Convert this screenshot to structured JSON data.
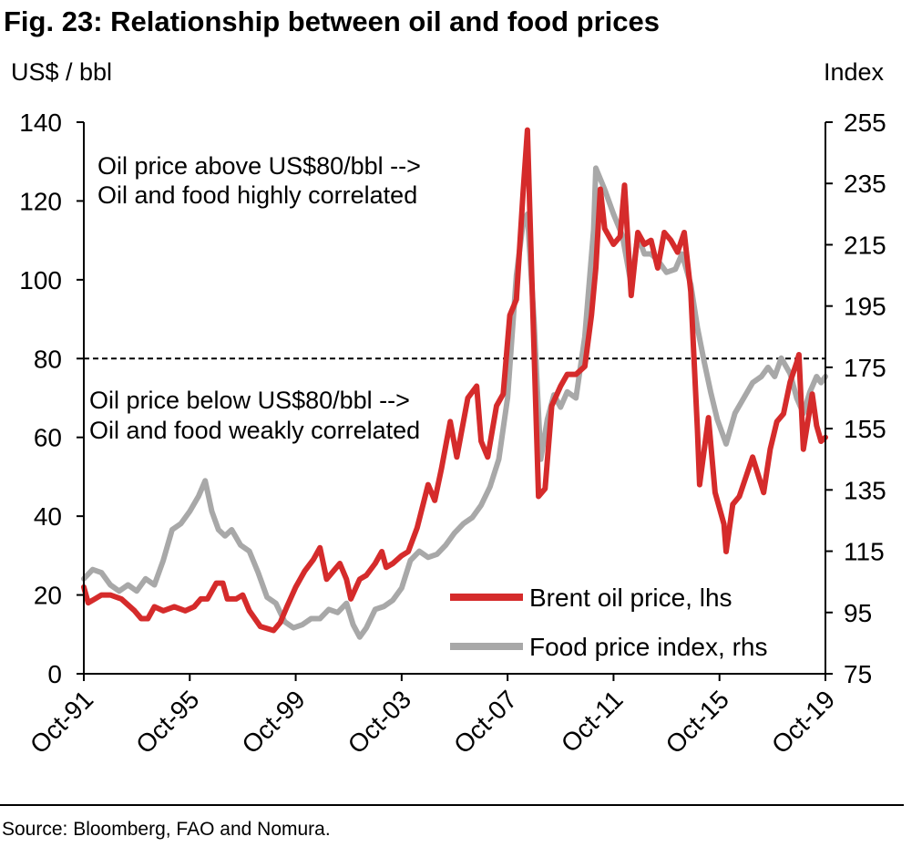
{
  "title": "Fig. 23: Relationship between oil and food prices",
  "unit_left": "US$ / bbl",
  "unit_right": "Index",
  "source": "Source: Bloomberg, FAO and Nomura.",
  "colors": {
    "oil": "#d52b2b",
    "food": "#a8a8a8",
    "axis": "#000000"
  },
  "chart_data": {
    "type": "line",
    "x_tick_labels": [
      "Oct-91",
      "Oct-95",
      "Oct-99",
      "Oct-03",
      "Oct-07",
      "Oct-11",
      "Oct-15",
      "Oct-19"
    ],
    "x_range": [
      "1991-10",
      "2019-10"
    ],
    "y_left": {
      "label": "US$ / bbl",
      "lim": [
        0,
        140
      ],
      "ticks": [
        0,
        20,
        40,
        60,
        80,
        100,
        120,
        140
      ]
    },
    "y_right": {
      "label": "Index",
      "lim": [
        75,
        255
      ],
      "ticks": [
        75,
        95,
        115,
        135,
        155,
        175,
        195,
        215,
        235,
        255
      ]
    },
    "reference_line": {
      "axis": "left",
      "value": 80,
      "style": "dashed"
    },
    "annotations": {
      "above_line1": "Oil price above US$80/bbl  -->",
      "above_line2": "Oil and food highly correlated",
      "below_line1": "Oil price below US$80/bbl -->",
      "below_line2": "Oil and food weakly correlated"
    },
    "legend": {
      "placement": "bottom-right"
    },
    "series": [
      {
        "name": "Brent oil price, lhs",
        "axis": "left",
        "points": [
          [
            "1991-10",
            22
          ],
          [
            "1991-12",
            18
          ],
          [
            "1992-03",
            19
          ],
          [
            "1992-06",
            20
          ],
          [
            "1992-10",
            20
          ],
          [
            "1993-03",
            19
          ],
          [
            "1993-09",
            16
          ],
          [
            "1993-12",
            14
          ],
          [
            "1994-03",
            14
          ],
          [
            "1994-06",
            17
          ],
          [
            "1994-10",
            16
          ],
          [
            "1995-03",
            17
          ],
          [
            "1995-08",
            16
          ],
          [
            "1995-12",
            17
          ],
          [
            "1996-03",
            19
          ],
          [
            "1996-06",
            19
          ],
          [
            "1996-10",
            23
          ],
          [
            "1997-01",
            23
          ],
          [
            "1997-03",
            19
          ],
          [
            "1997-07",
            19
          ],
          [
            "1997-10",
            20
          ],
          [
            "1998-01",
            16
          ],
          [
            "1998-06",
            12
          ],
          [
            "1998-12",
            11
          ],
          [
            "1999-03",
            13
          ],
          [
            "1999-06",
            17
          ],
          [
            "1999-10",
            22
          ],
          [
            "2000-02",
            26
          ],
          [
            "2000-06",
            29
          ],
          [
            "2000-09",
            32
          ],
          [
            "2000-12",
            24
          ],
          [
            "2001-03",
            26
          ],
          [
            "2001-06",
            28
          ],
          [
            "2001-09",
            24
          ],
          [
            "2001-11",
            19
          ],
          [
            "2002-03",
            24
          ],
          [
            "2002-06",
            25
          ],
          [
            "2002-10",
            28
          ],
          [
            "2003-01",
            31
          ],
          [
            "2003-03",
            27
          ],
          [
            "2003-06",
            28
          ],
          [
            "2003-10",
            30
          ],
          [
            "2004-01",
            31
          ],
          [
            "2004-05",
            37
          ],
          [
            "2004-10",
            48
          ],
          [
            "2005-01",
            44
          ],
          [
            "2005-04",
            52
          ],
          [
            "2005-08",
            64
          ],
          [
            "2005-11",
            55
          ],
          [
            "2006-04",
            70
          ],
          [
            "2006-08",
            73
          ],
          [
            "2006-10",
            59
          ],
          [
            "2007-01",
            55
          ],
          [
            "2007-05",
            68
          ],
          [
            "2007-08",
            71
          ],
          [
            "2007-11",
            91
          ],
          [
            "2008-02",
            95
          ],
          [
            "2008-05",
            122
          ],
          [
            "2008-07",
            138
          ],
          [
            "2008-09",
            100
          ],
          [
            "2008-12",
            45
          ],
          [
            "2009-03",
            47
          ],
          [
            "2009-06",
            68
          ],
          [
            "2009-10",
            73
          ],
          [
            "2010-01",
            76
          ],
          [
            "2010-05",
            76
          ],
          [
            "2010-09",
            78
          ],
          [
            "2010-12",
            91
          ],
          [
            "2011-02",
            103
          ],
          [
            "2011-04",
            123
          ],
          [
            "2011-06",
            113
          ],
          [
            "2011-10",
            109
          ],
          [
            "2012-01",
            111
          ],
          [
            "2012-03",
            124
          ],
          [
            "2012-06",
            96
          ],
          [
            "2012-09",
            112
          ],
          [
            "2012-12",
            109
          ],
          [
            "2013-03",
            110
          ],
          [
            "2013-06",
            103
          ],
          [
            "2013-09",
            112
          ],
          [
            "2013-12",
            110
          ],
          [
            "2014-03",
            107
          ],
          [
            "2014-06",
            112
          ],
          [
            "2014-09",
            97
          ],
          [
            "2014-12",
            62
          ],
          [
            "2015-01",
            48
          ],
          [
            "2015-05",
            65
          ],
          [
            "2015-08",
            46
          ],
          [
            "2015-12",
            38
          ],
          [
            "2016-01",
            31
          ],
          [
            "2016-04",
            43
          ],
          [
            "2016-07",
            45
          ],
          [
            "2016-10",
            50
          ],
          [
            "2017-01",
            55
          ],
          [
            "2017-06",
            46
          ],
          [
            "2017-09",
            57
          ],
          [
            "2017-12",
            64
          ],
          [
            "2018-03",
            66
          ],
          [
            "2018-06",
            74
          ],
          [
            "2018-09",
            79
          ],
          [
            "2018-10",
            81
          ],
          [
            "2018-12",
            57
          ],
          [
            "2019-04",
            71
          ],
          [
            "2019-06",
            63
          ],
          [
            "2019-08",
            59
          ],
          [
            "2019-10",
            60
          ]
        ]
      },
      {
        "name": "Food price index, rhs",
        "axis": "right",
        "points": [
          [
            "1991-10",
            106
          ],
          [
            "1992-02",
            109
          ],
          [
            "1992-06",
            108
          ],
          [
            "1992-10",
            104
          ],
          [
            "1993-02",
            102
          ],
          [
            "1993-06",
            104
          ],
          [
            "1993-10",
            102
          ],
          [
            "1994-02",
            106
          ],
          [
            "1994-06",
            104
          ],
          [
            "1994-10",
            112
          ],
          [
            "1995-02",
            122
          ],
          [
            "1995-06",
            124
          ],
          [
            "1995-10",
            128
          ],
          [
            "1996-02",
            133
          ],
          [
            "1996-05",
            138
          ],
          [
            "1996-08",
            128
          ],
          [
            "1996-11",
            122
          ],
          [
            "1997-02",
            120
          ],
          [
            "1997-05",
            122
          ],
          [
            "1997-09",
            117
          ],
          [
            "1998-01",
            115
          ],
          [
            "1998-05",
            108
          ],
          [
            "1998-09",
            100
          ],
          [
            "1999-01",
            98
          ],
          [
            "1999-05",
            92
          ],
          [
            "1999-09",
            90
          ],
          [
            "2000-01",
            91
          ],
          [
            "2000-05",
            93
          ],
          [
            "2000-09",
            93
          ],
          [
            "2001-01",
            96
          ],
          [
            "2001-05",
            95
          ],
          [
            "2001-09",
            98
          ],
          [
            "2001-12",
            91
          ],
          [
            "2002-03",
            87
          ],
          [
            "2002-06",
            90
          ],
          [
            "2002-10",
            96
          ],
          [
            "2003-02",
            97
          ],
          [
            "2003-06",
            99
          ],
          [
            "2003-10",
            103
          ],
          [
            "2004-02",
            112
          ],
          [
            "2004-06",
            115
          ],
          [
            "2004-10",
            113
          ],
          [
            "2005-02",
            114
          ],
          [
            "2005-06",
            117
          ],
          [
            "2005-10",
            121
          ],
          [
            "2006-02",
            124
          ],
          [
            "2006-06",
            126
          ],
          [
            "2006-10",
            130
          ],
          [
            "2007-02",
            136
          ],
          [
            "2007-06",
            145
          ],
          [
            "2007-10",
            165
          ],
          [
            "2008-02",
            205
          ],
          [
            "2008-05",
            222
          ],
          [
            "2008-07",
            225
          ],
          [
            "2008-10",
            190
          ],
          [
            "2009-01",
            145
          ],
          [
            "2009-04",
            158
          ],
          [
            "2009-07",
            166
          ],
          [
            "2009-10",
            162
          ],
          [
            "2010-01",
            167
          ],
          [
            "2010-05",
            165
          ],
          [
            "2010-09",
            185
          ],
          [
            "2011-01",
            220
          ],
          [
            "2011-02",
            240
          ],
          [
            "2011-06",
            233
          ],
          [
            "2011-10",
            225
          ],
          [
            "2012-02",
            218
          ],
          [
            "2012-06",
            202
          ],
          [
            "2012-09",
            218
          ],
          [
            "2012-12",
            212
          ],
          [
            "2013-03",
            212
          ],
          [
            "2013-06",
            210
          ],
          [
            "2013-10",
            206
          ],
          [
            "2014-02",
            207
          ],
          [
            "2014-05",
            212
          ],
          [
            "2014-09",
            202
          ],
          [
            "2014-12",
            188
          ],
          [
            "2015-03",
            177
          ],
          [
            "2015-06",
            167
          ],
          [
            "2015-09",
            158
          ],
          [
            "2016-01",
            150
          ],
          [
            "2016-05",
            160
          ],
          [
            "2016-09",
            165
          ],
          [
            "2017-01",
            170
          ],
          [
            "2017-05",
            172
          ],
          [
            "2017-08",
            175
          ],
          [
            "2017-11",
            172
          ],
          [
            "2018-02",
            178
          ],
          [
            "2018-06",
            173
          ],
          [
            "2018-09",
            165
          ],
          [
            "2018-12",
            160
          ],
          [
            "2019-03",
            167
          ],
          [
            "2019-06",
            172
          ],
          [
            "2019-08",
            170
          ],
          [
            "2019-10",
            172
          ]
        ]
      }
    ]
  }
}
